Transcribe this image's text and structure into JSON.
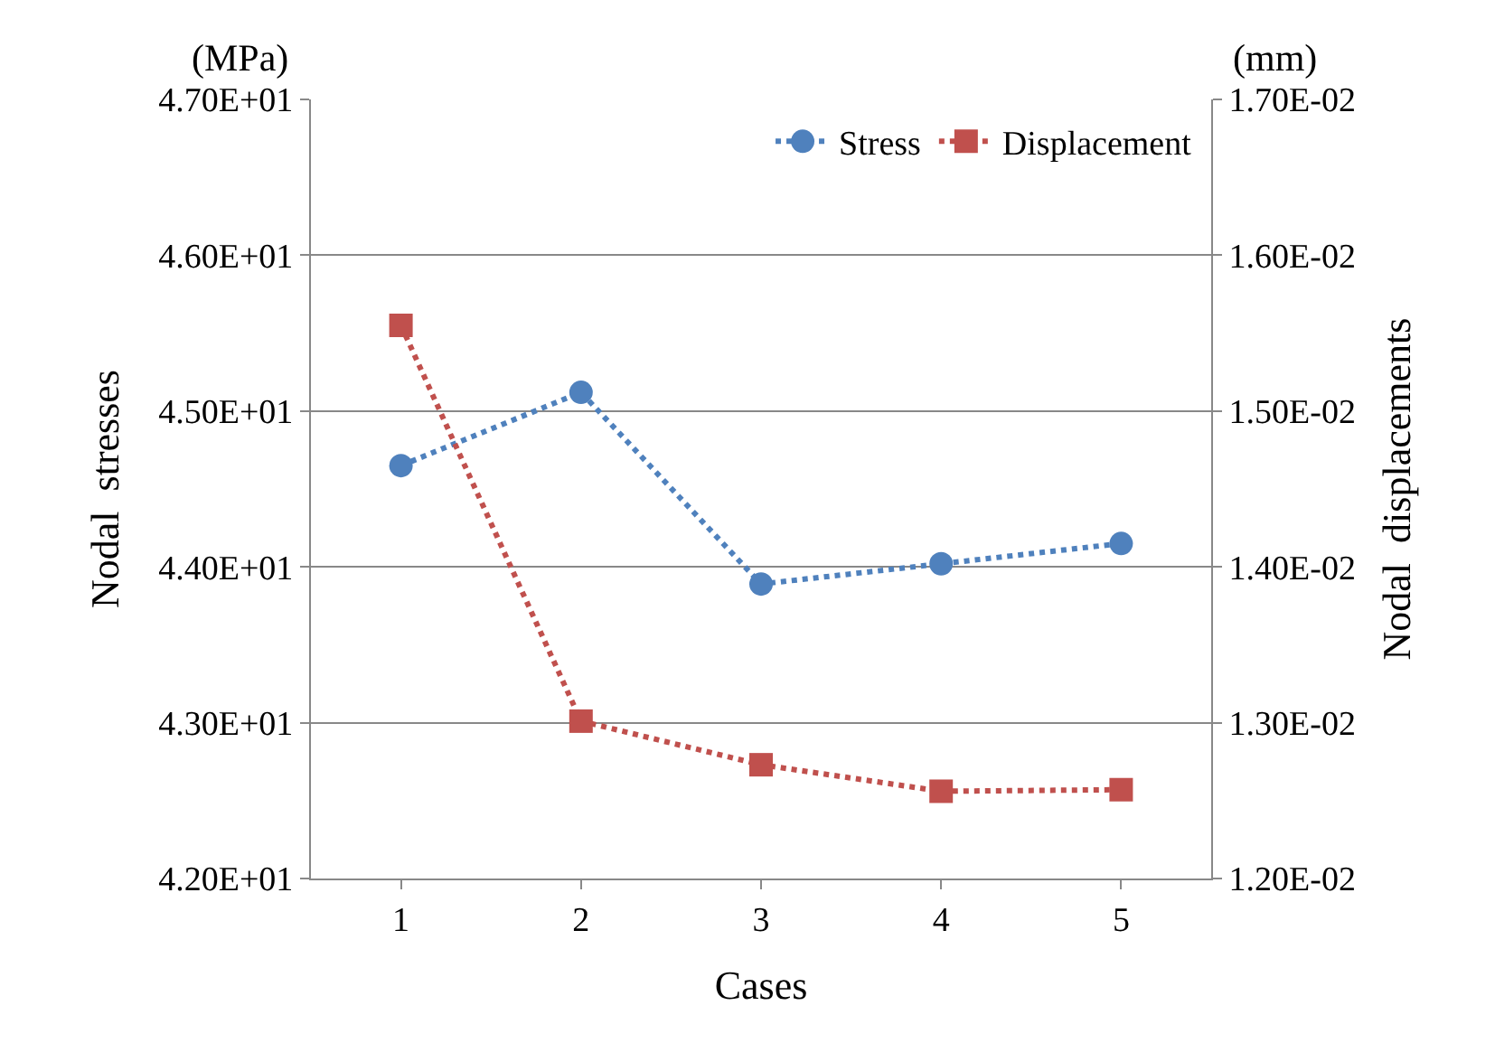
{
  "chart_data": {
    "type": "line",
    "categories": [
      "1",
      "2",
      "3",
      "4",
      "5"
    ],
    "series": [
      {
        "name": "Stress",
        "color": "#4f81bd",
        "marker": "circle",
        "values": [
          44.65,
          45.12,
          43.89,
          44.02,
          44.15
        ]
      },
      {
        "name": "Displacement",
        "color": "#c0504d",
        "marker": "square",
        "axis": "y2",
        "values": [
          0.01555,
          0.01301,
          0.01273,
          0.01256,
          0.01257
        ]
      }
    ],
    "xlabel": "Cases",
    "ylabel": "Nodal  stresses",
    "y2label": "Nodal  displacements",
    "annotations": [
      "(MPa)",
      "(mm)"
    ],
    "ylim": [
      42,
      47
    ],
    "yticks": [
      {
        "value": 42,
        "label": "4.20E+01"
      },
      {
        "value": 43,
        "label": "4.30E+01"
      },
      {
        "value": 44,
        "label": "4.40E+01"
      },
      {
        "value": 45,
        "label": "4.50E+01"
      },
      {
        "value": 46,
        "label": "4.60E+01"
      },
      {
        "value": 47,
        "label": "4.70E+01"
      }
    ],
    "y2lim": [
      0.012,
      0.017
    ],
    "y2ticks": [
      {
        "value": 0.012,
        "label": "1.20E-02"
      },
      {
        "value": 0.013,
        "label": "1.30E-02"
      },
      {
        "value": 0.014,
        "label": "1.40E-02"
      },
      {
        "value": 0.015,
        "label": "1.50E-02"
      },
      {
        "value": 0.016,
        "label": "1.60E-02"
      },
      {
        "value": 0.017,
        "label": "1.70E-02"
      }
    ],
    "grid": "y",
    "legend": "top right",
    "line_style": "dotted"
  }
}
